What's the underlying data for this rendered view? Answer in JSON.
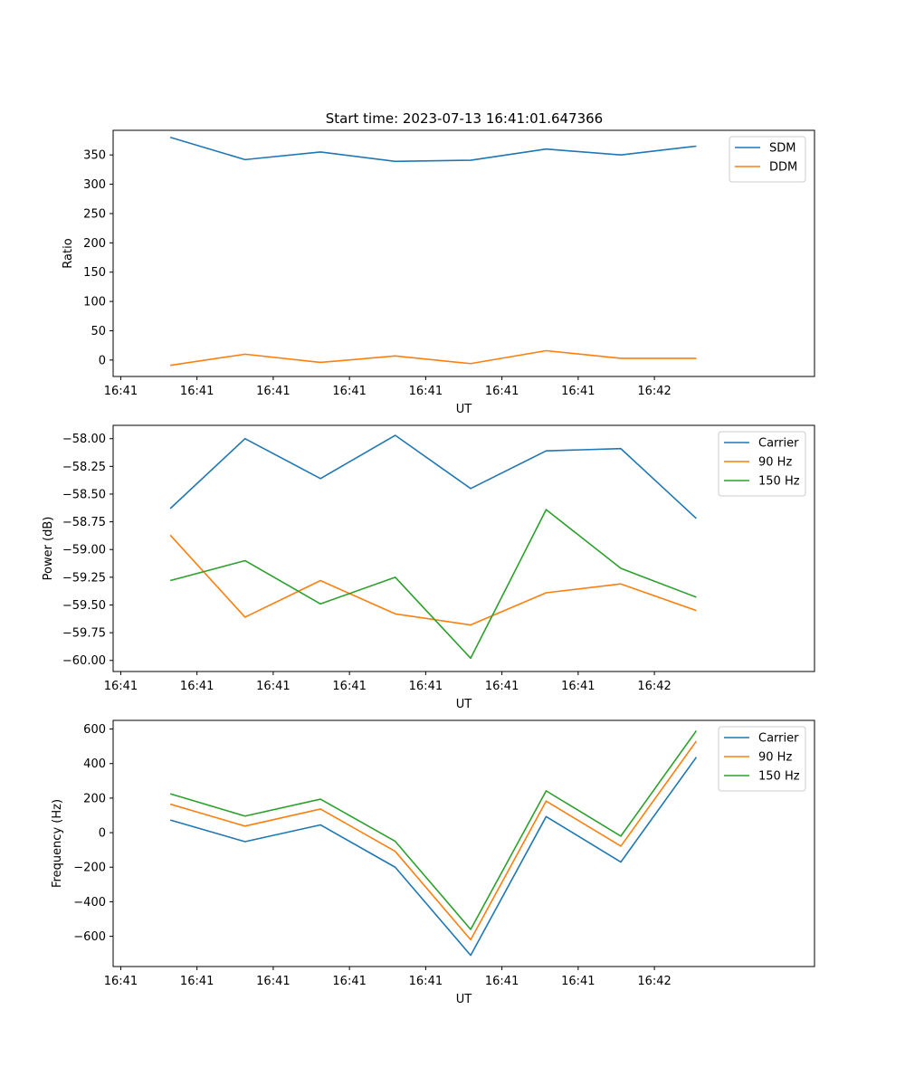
{
  "title": "Start time: 2023-07-13 16:41:01.647366",
  "chart_data": [
    {
      "type": "line",
      "xlabel": "UT",
      "ylabel": "Ratio",
      "x_tick_labels": [
        "16:41",
        "16:41",
        "16:41",
        "16:41",
        "16:41",
        "16:41",
        "16:41",
        "16:42"
      ],
      "xlim": [
        0,
        9.2
      ],
      "ylim": [
        -28,
        392
      ],
      "y_ticks": [
        0,
        50,
        100,
        150,
        200,
        250,
        300,
        350
      ],
      "legend_position": "top-right",
      "x": [
        0.75,
        1.73,
        2.72,
        3.7,
        4.69,
        5.68,
        6.66,
        7.65
      ],
      "series": [
        {
          "name": "SDM",
          "color": "#1f77b4",
          "values": [
            380,
            342,
            355,
            339,
            341,
            360,
            350,
            365
          ]
        },
        {
          "name": "DDM",
          "color": "#ff7f0e",
          "values": [
            -9,
            10,
            -4,
            7,
            -6,
            16,
            3,
            3
          ]
        }
      ]
    },
    {
      "type": "line",
      "xlabel": "UT",
      "ylabel": "Power (dB)",
      "x_tick_labels": [
        "16:41",
        "16:41",
        "16:41",
        "16:41",
        "16:41",
        "16:41",
        "16:41",
        "16:42"
      ],
      "xlim": [
        0,
        9.2
      ],
      "ylim": [
        -60.1,
        -57.88
      ],
      "y_ticks": [
        -58.0,
        -58.25,
        -58.5,
        -58.75,
        -59.0,
        -59.25,
        -59.5,
        -59.75,
        -60.0
      ],
      "y_tick_labels": [
        "−58.00",
        "−58.25",
        "−58.50",
        "−58.75",
        "−59.00",
        "−59.25",
        "−59.50",
        "−59.75",
        "−60.00"
      ],
      "legend_position": "top-right",
      "x": [
        0.75,
        1.73,
        2.72,
        3.7,
        4.69,
        5.68,
        6.66,
        7.65
      ],
      "series": [
        {
          "name": "Carrier",
          "color": "#1f77b4",
          "values": [
            -58.63,
            -58.0,
            -58.36,
            -57.97,
            -58.45,
            -58.11,
            -58.09,
            -58.72
          ]
        },
        {
          "name": "90 Hz",
          "color": "#ff7f0e",
          "values": [
            -58.87,
            -59.61,
            -59.28,
            -59.58,
            -59.68,
            -59.39,
            -59.31,
            -59.55
          ]
        },
        {
          "name": "150 Hz",
          "color": "#2ca02c",
          "values": [
            -59.28,
            -59.1,
            -59.49,
            -59.25,
            -59.98,
            -58.64,
            -59.17,
            -59.43
          ]
        }
      ]
    },
    {
      "type": "line",
      "xlabel": "UT",
      "ylabel": "Frequency (Hz)",
      "x_tick_labels": [
        "16:41",
        "16:41",
        "16:41",
        "16:41",
        "16:41",
        "16:41",
        "16:41",
        "16:42"
      ],
      "xlim": [
        0,
        9.2
      ],
      "ylim": [
        -775,
        650
      ],
      "y_ticks": [
        600,
        400,
        200,
        0,
        -200,
        -400,
        -600
      ],
      "y_tick_labels": [
        "600",
        "400",
        "200",
        "0",
        "−200",
        "−400",
        "−600"
      ],
      "legend_position": "top-right",
      "x": [
        0.75,
        1.73,
        2.72,
        3.7,
        4.69,
        5.68,
        6.66,
        7.65
      ],
      "series": [
        {
          "name": "Carrier",
          "color": "#1f77b4",
          "values": [
            73,
            -52,
            45,
            -200,
            -710,
            93,
            -170,
            437
          ]
        },
        {
          "name": "90 Hz",
          "color": "#ff7f0e",
          "values": [
            165,
            38,
            137,
            -108,
            -620,
            183,
            -78,
            530
          ]
        },
        {
          "name": "150 Hz",
          "color": "#2ca02c",
          "values": [
            225,
            96,
            194,
            -50,
            -560,
            242,
            -20,
            590
          ]
        }
      ]
    }
  ]
}
